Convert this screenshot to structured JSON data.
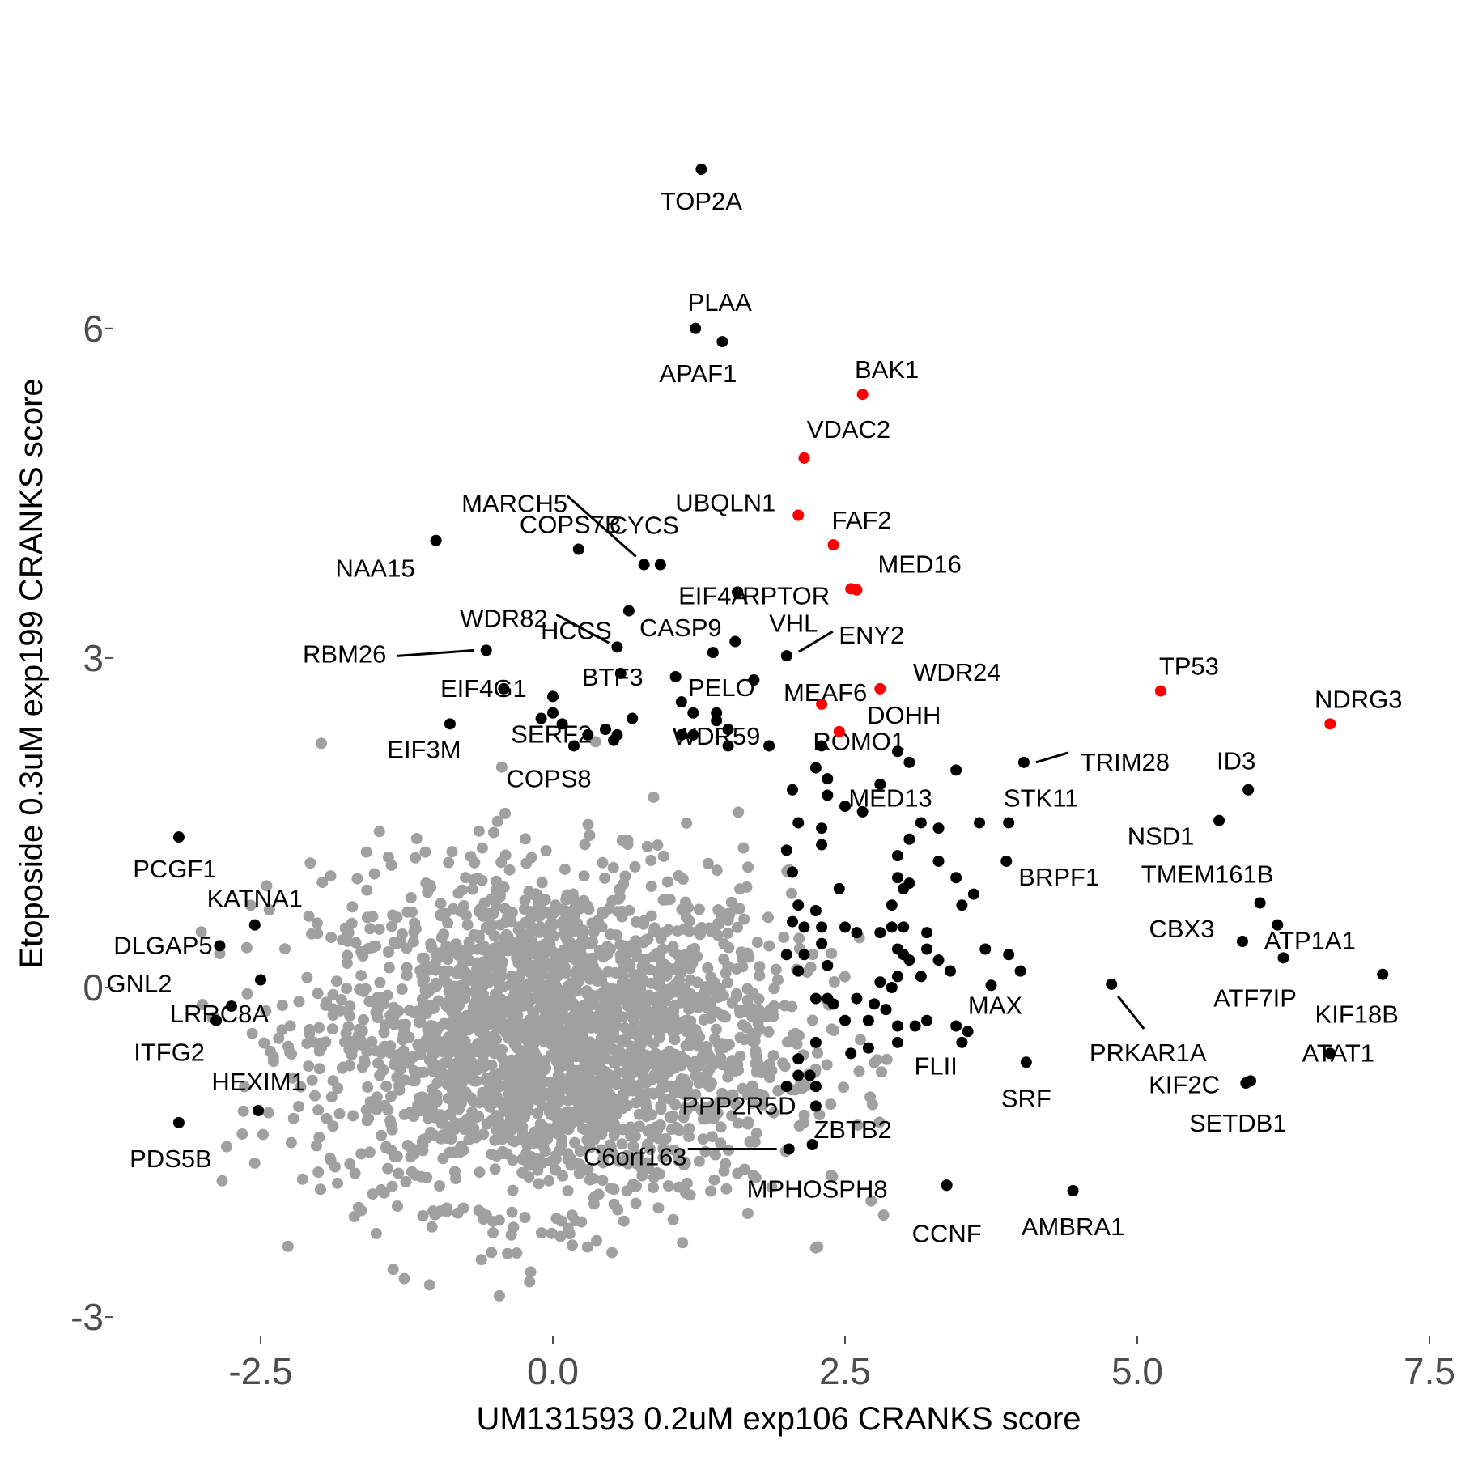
{
  "chart_data": {
    "type": "scatter",
    "title": "",
    "xlabel": "UM131593 0.2uM exp106 CRANKS score",
    "ylabel": "Etoposide 0.3uM exp199 CRANKS score",
    "xlim": [
      -3.75,
      7.5
    ],
    "ylim": [
      -3.1,
      8.1
    ],
    "x_ticks": [
      -2.5,
      0.0,
      2.5,
      5.0,
      7.5
    ],
    "x_tick_labels": [
      "-2.5",
      "0.0",
      "2.5",
      "5.0",
      "7.5"
    ],
    "y_ticks": [
      -3,
      0,
      3,
      6
    ],
    "y_tick_labels": [
      "-3",
      "0",
      "3",
      "6"
    ],
    "grid": false,
    "legend": "none",
    "colors": {
      "background": "#ffffff",
      "hit": "#000000",
      "highlight": "#ff0000",
      "other": "#a0a0a0"
    },
    "background_points": {
      "description_free": true,
      "count": 2400,
      "center": [
        0.0,
        -0.45
      ],
      "spread_x": 1.0,
      "spread_y": 0.75,
      "color": "#a0a0a0"
    },
    "highlighted_points": [
      {
        "label": "BAK1",
        "x": 2.65,
        "y": 5.4
      },
      {
        "label": "VDAC2",
        "x": 2.15,
        "y": 4.82
      },
      {
        "label": "UBQLN1",
        "x": 2.1,
        "y": 4.3
      },
      {
        "label": "FAF2",
        "x": 2.4,
        "y": 4.03
      },
      {
        "label": "MED16",
        "x": 2.55,
        "y": 3.63
      },
      {
        "label": "",
        "x": 2.6,
        "y": 3.62
      },
      {
        "label": "WDR24",
        "x": 2.8,
        "y": 2.72
      },
      {
        "label": "",
        "x": 2.3,
        "y": 2.58
      },
      {
        "label": "DOHH",
        "x": 2.45,
        "y": 2.33
      },
      {
        "label": "TP53",
        "x": 5.2,
        "y": 2.7
      },
      {
        "label": "NDRG3",
        "x": 6.65,
        "y": 2.4
      }
    ],
    "labeled_points": [
      {
        "label": "TOP2A",
        "x": 1.27,
        "y": 7.45
      },
      {
        "label": "PLAA",
        "x": 1.22,
        "y": 6.0
      },
      {
        "label": "APAF1",
        "x": 1.45,
        "y": 5.88
      },
      {
        "label": "MARCH5",
        "x": 0.78,
        "y": 3.85
      },
      {
        "label": "COPS7B",
        "x": 0.22,
        "y": 3.99
      },
      {
        "label": "CYCS",
        "x": 0.92,
        "y": 3.85
      },
      {
        "label": "NAA15",
        "x": -1.0,
        "y": 4.07
      },
      {
        "label": "HCCS",
        "x": 0.65,
        "y": 3.43
      },
      {
        "label": "EIF4A",
        "x": 1.58,
        "y": 3.6
      },
      {
        "label": "RPTOR",
        "x": 1.58,
        "y": 3.6
      },
      {
        "label": "WDR82",
        "x": 0.55,
        "y": 3.1
      },
      {
        "label": "CASP9",
        "x": 1.37,
        "y": 3.05
      },
      {
        "label": "VHL",
        "x": 1.56,
        "y": 3.15
      },
      {
        "label": "ENY2",
        "x": 2.0,
        "y": 3.02
      },
      {
        "label": "RBM26",
        "x": -0.57,
        "y": 3.07
      },
      {
        "label": "BTF3",
        "x": 0.58,
        "y": 2.86
      },
      {
        "label": "MEAF6",
        "x": 1.05,
        "y": 2.83
      },
      {
        "label": "PELO",
        "x": 1.72,
        "y": 2.8
      },
      {
        "label": "EIF4G1",
        "x": -0.42,
        "y": 2.72
      },
      {
        "label": "SERF2",
        "x": 0.68,
        "y": 2.45
      },
      {
        "label": "WDR59",
        "x": 1.4,
        "y": 2.43
      },
      {
        "label": "ROMO1",
        "x": 3.45,
        "y": 1.98
      },
      {
        "label": "TRIM28",
        "x": 4.03,
        "y": 2.05
      },
      {
        "label": "EIF3M",
        "x": -0.88,
        "y": 2.4
      },
      {
        "label": "COPS8",
        "x": 0.52,
        "y": 2.25
      },
      {
        "label": "ID3",
        "x": 5.95,
        "y": 1.8
      },
      {
        "label": "MED13",
        "x": 3.65,
        "y": 1.5
      },
      {
        "label": "STK11",
        "x": 3.9,
        "y": 1.5
      },
      {
        "label": "NSD1",
        "x": 5.7,
        "y": 1.52
      },
      {
        "label": "PCGF1",
        "x": -3.2,
        "y": 1.37
      },
      {
        "label": "BRPF1",
        "x": 3.88,
        "y": 1.15
      },
      {
        "label": "TMEM161B",
        "x": 6.05,
        "y": 0.77
      },
      {
        "label": "KATNA1",
        "x": -2.55,
        "y": 0.57
      },
      {
        "label": "CBX3",
        "x": 5.9,
        "y": 0.42
      },
      {
        "label": "ATP1A1",
        "x": 6.2,
        "y": 0.57
      },
      {
        "label": "DLGAP5",
        "x": -2.85,
        "y": 0.38
      },
      {
        "label": "ATF7IP",
        "x": 6.25,
        "y": 0.27
      },
      {
        "label": "GNL2",
        "x": -2.5,
        "y": 0.07
      },
      {
        "label": "KIF18B",
        "x": 7.1,
        "y": 0.12
      },
      {
        "label": "MAX",
        "x": 3.75,
        "y": 0.02
      },
      {
        "label": "PRKAR1A",
        "x": 4.78,
        "y": 0.03
      },
      {
        "label": "LRRC8A",
        "x": -2.75,
        "y": -0.17
      },
      {
        "label": "ITFG2",
        "x": -2.88,
        "y": -0.3
      },
      {
        "label": "FLII",
        "x": 3.45,
        "y": -0.35
      },
      {
        "label": "ATAT1",
        "x": 6.65,
        "y": -0.6
      },
      {
        "label": "KIF2C",
        "x": 5.97,
        "y": -0.85
      },
      {
        "label": "SRF",
        "x": 4.05,
        "y": -0.68
      },
      {
        "label": "SETDB1",
        "x": 5.93,
        "y": -0.87
      },
      {
        "label": "HEXIM1",
        "x": -2.52,
        "y": -1.12
      },
      {
        "label": "PDS5B",
        "x": -3.2,
        "y": -1.23
      },
      {
        "label": "PPP2R5D",
        "x": 2.25,
        "y": -1.08
      },
      {
        "label": "ZBTB2",
        "x": 2.22,
        "y": -1.43
      },
      {
        "label": "C6orf163",
        "x": 2.02,
        "y": -1.47
      },
      {
        "label": "MPHOSPH8",
        "x": 3.37,
        "y": -1.8
      },
      {
        "label": "AMBRA1",
        "x": 4.45,
        "y": -1.85
      },
      {
        "label": "CCNF",
        "x": 3.37,
        "y": -1.8
      }
    ],
    "other_hits": [
      [
        0.0,
        2.65
      ],
      [
        -0.1,
        2.45
      ],
      [
        0.0,
        2.5
      ],
      [
        0.08,
        2.4
      ],
      [
        0.3,
        2.3
      ],
      [
        0.18,
        2.2
      ],
      [
        0.45,
        2.35
      ],
      [
        0.55,
        2.3
      ],
      [
        1.1,
        2.6
      ],
      [
        1.2,
        2.5
      ],
      [
        1.1,
        2.3
      ],
      [
        1.2,
        2.3
      ],
      [
        1.4,
        2.5
      ],
      [
        1.5,
        2.35
      ],
      [
        1.5,
        2.2
      ],
      [
        1.85,
        2.2
      ],
      [
        2.3,
        2.2
      ],
      [
        2.25,
        2.0
      ],
      [
        2.35,
        1.9
      ],
      [
        2.05,
        1.8
      ],
      [
        2.35,
        1.75
      ],
      [
        2.1,
        1.5
      ],
      [
        2.5,
        1.65
      ],
      [
        2.65,
        1.6
      ],
      [
        2.95,
        2.15
      ],
      [
        3.05,
        2.05
      ],
      [
        2.8,
        1.85
      ],
      [
        3.15,
        1.5
      ],
      [
        3.3,
        1.45
      ],
      [
        3.05,
        1.35
      ],
      [
        2.3,
        1.45
      ],
      [
        2.3,
        1.3
      ],
      [
        2.0,
        1.25
      ],
      [
        2.05,
        1.05
      ],
      [
        2.45,
        0.9
      ],
      [
        2.95,
        1.2
      ],
      [
        3.3,
        1.15
      ],
      [
        3.45,
        1.0
      ],
      [
        2.95,
        1.0
      ],
      [
        3.05,
        0.95
      ],
      [
        3.0,
        0.9
      ],
      [
        3.6,
        0.85
      ],
      [
        3.5,
        0.75
      ],
      [
        2.9,
        0.75
      ],
      [
        2.1,
        0.75
      ],
      [
        2.25,
        0.7
      ],
      [
        2.05,
        0.6
      ],
      [
        2.15,
        0.55
      ],
      [
        2.3,
        0.55
      ],
      [
        2.5,
        0.55
      ],
      [
        2.6,
        0.5
      ],
      [
        2.8,
        0.5
      ],
      [
        2.9,
        0.55
      ],
      [
        3.0,
        0.55
      ],
      [
        3.2,
        0.5
      ],
      [
        3.2,
        0.35
      ],
      [
        3.3,
        0.25
      ],
      [
        3.05,
        0.25
      ],
      [
        2.95,
        0.1
      ],
      [
        2.8,
        0.05
      ],
      [
        2.9,
        0.0
      ],
      [
        3.15,
        0.1
      ],
      [
        3.4,
        0.15
      ],
      [
        3.7,
        0.35
      ],
      [
        3.9,
        0.3
      ],
      [
        4.0,
        0.15
      ],
      [
        2.0,
        0.3
      ],
      [
        2.15,
        0.3
      ],
      [
        2.3,
        0.4
      ],
      [
        2.35,
        0.2
      ],
      [
        2.1,
        0.15
      ],
      [
        2.25,
        -0.1
      ],
      [
        2.35,
        -0.1
      ],
      [
        2.4,
        -0.15
      ],
      [
        2.5,
        -0.3
      ],
      [
        2.7,
        -0.3
      ],
      [
        2.85,
        -0.2
      ],
      [
        2.95,
        -0.35
      ],
      [
        3.1,
        -0.35
      ],
      [
        3.2,
        -0.3
      ],
      [
        2.95,
        -0.5
      ],
      [
        2.7,
        -0.55
      ],
      [
        2.55,
        -0.6
      ],
      [
        2.25,
        -0.5
      ],
      [
        2.1,
        -0.65
      ],
      [
        2.1,
        -0.8
      ],
      [
        2.2,
        -0.8
      ],
      [
        2.25,
        -0.9
      ],
      [
        2.0,
        -0.9
      ],
      [
        2.6,
        -0.1
      ],
      [
        2.75,
        -0.15
      ],
      [
        3.5,
        -0.5
      ],
      [
        3.55,
        -0.4
      ],
      [
        2.95,
        0.35
      ],
      [
        3.0,
        0.3
      ]
    ]
  }
}
